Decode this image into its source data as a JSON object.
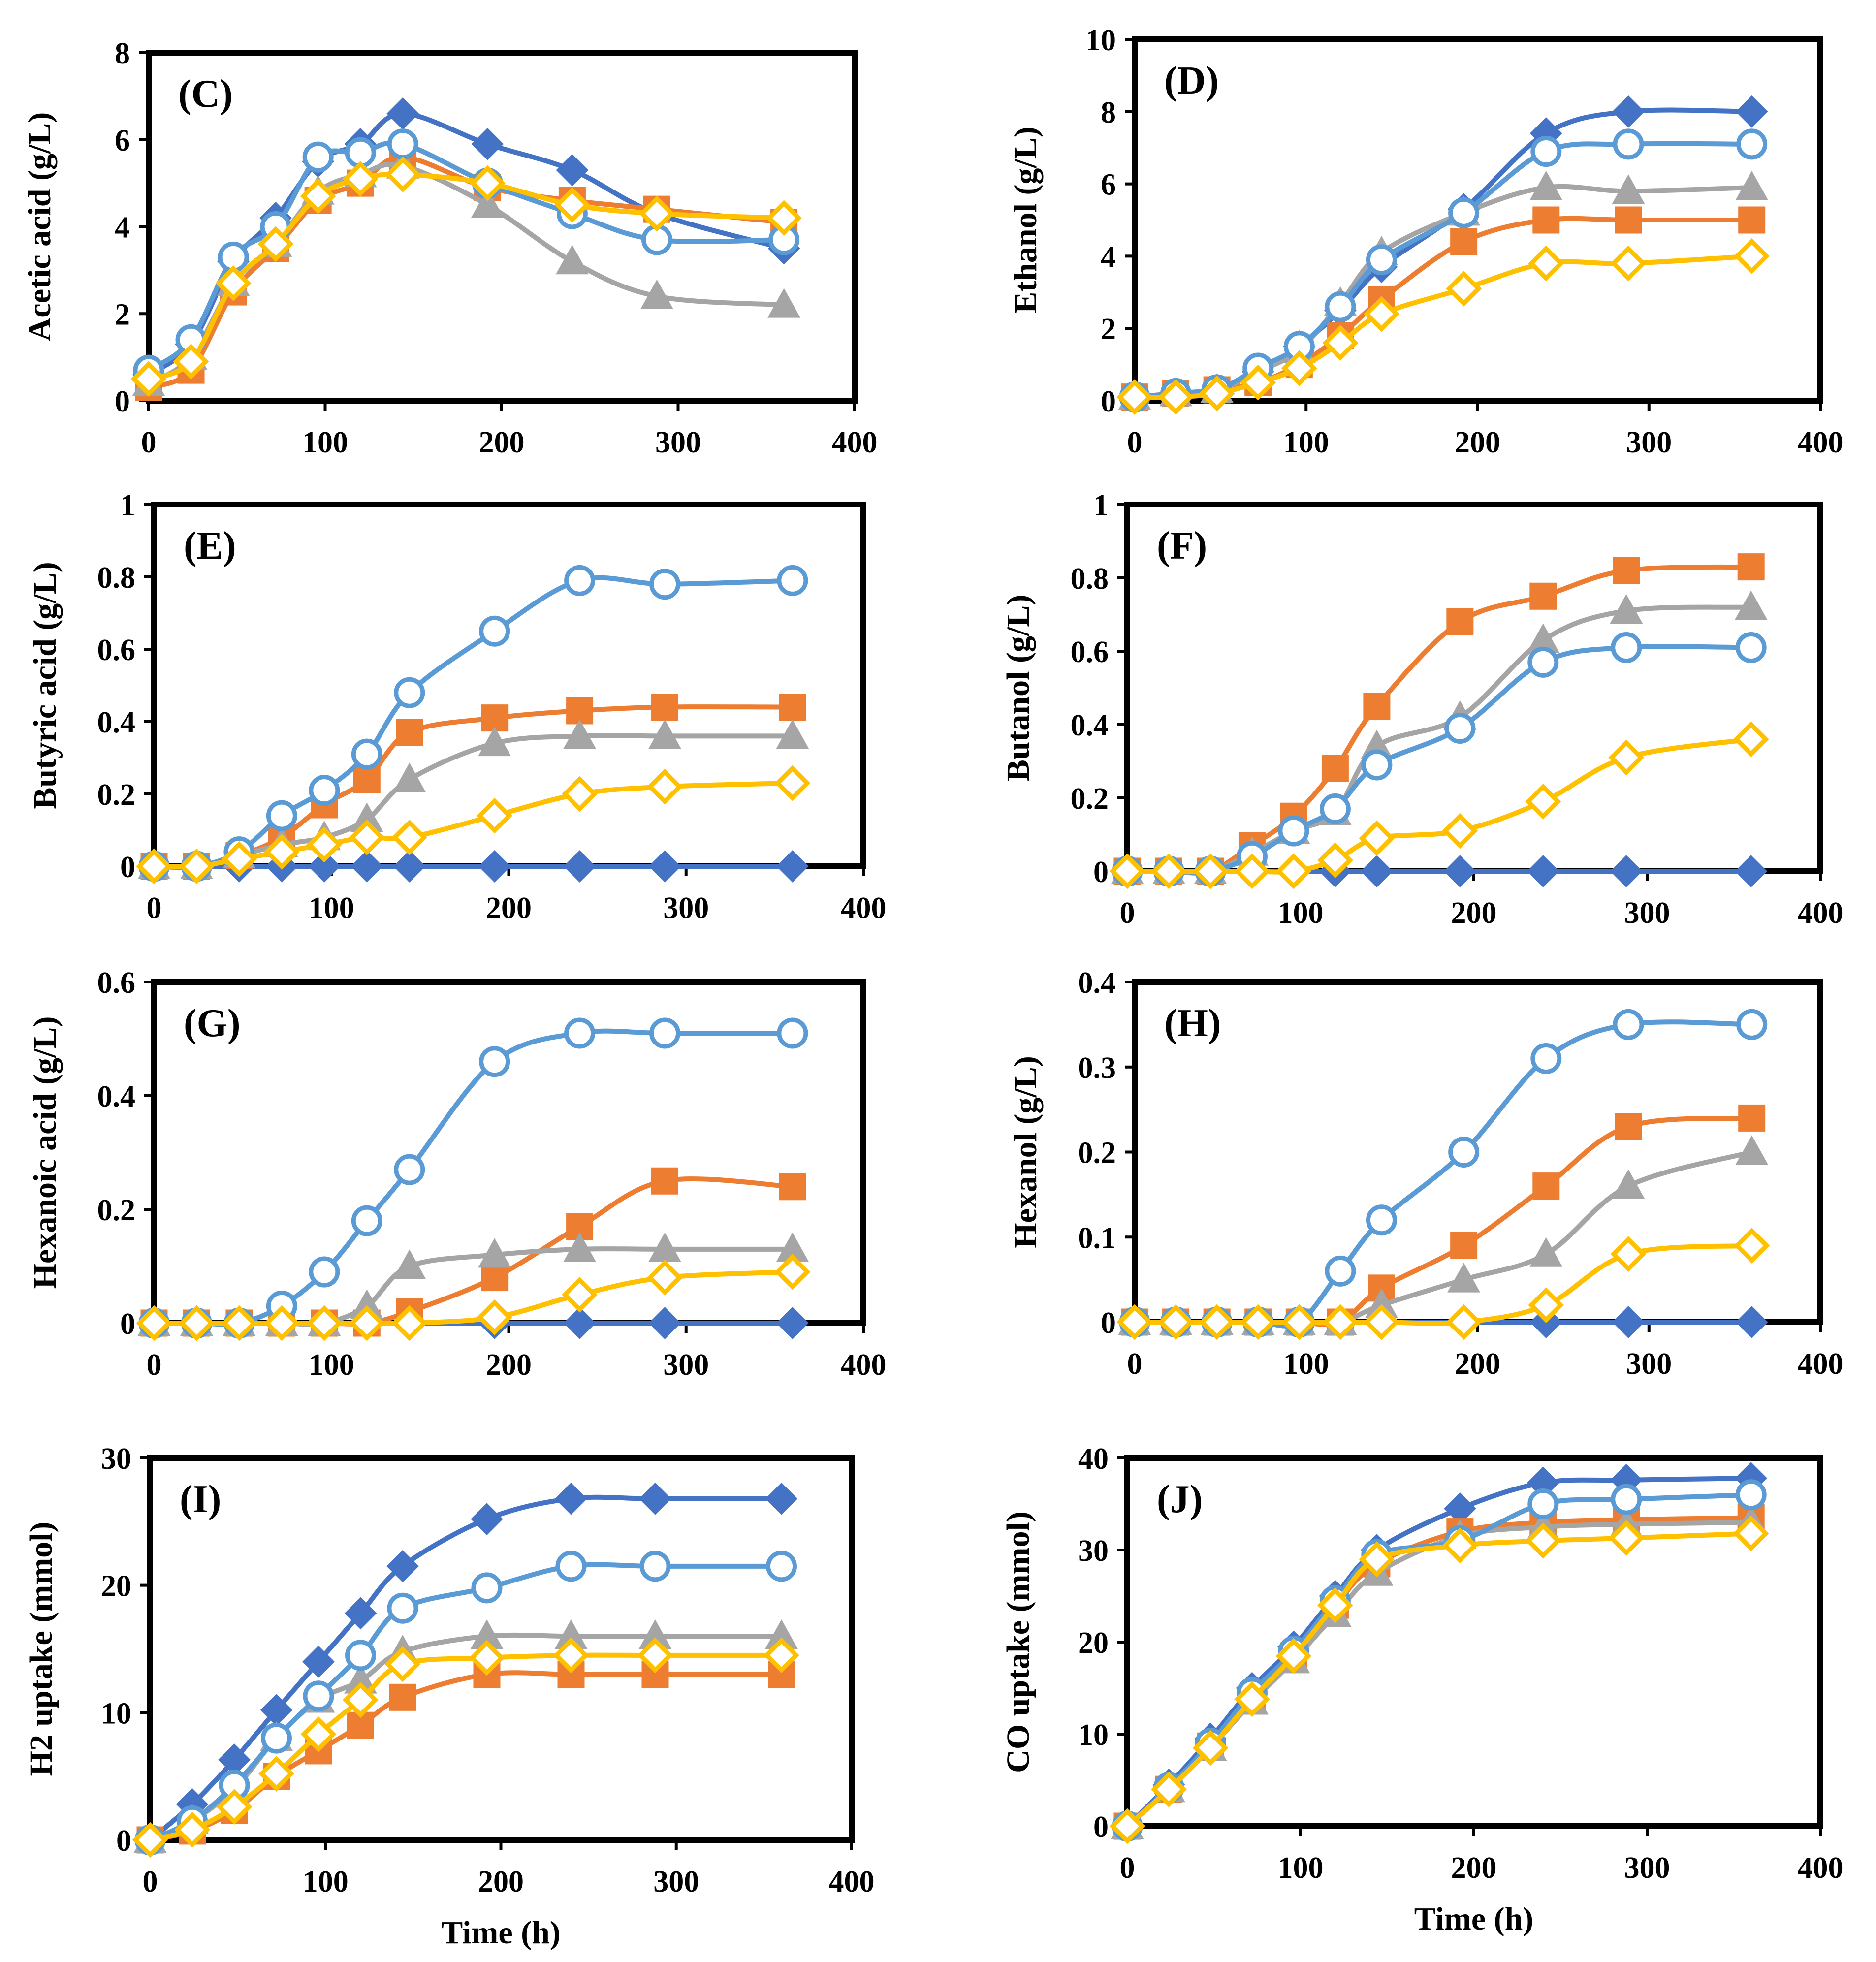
{
  "figure": {
    "x_axis_title": "Time (h)",
    "series_colors": {
      "blue_diamond": "#4472C4",
      "orange_square": "#ED7D31",
      "gray_triangle": "#A5A5A5",
      "lightblue_circle": "#5B9BD5",
      "yellow_diamond": "#FFC000"
    }
  },
  "chart_data": [
    {
      "type": "line",
      "panel": "(C)",
      "ylabel": "Acetic acid (g/L)",
      "xlabel": "",
      "xlim": [
        0,
        400
      ],
      "ylim": [
        0,
        8
      ],
      "xticks": [
        "0",
        "100",
        "200",
        "300",
        "400"
      ],
      "yticks": [
        "0",
        "2",
        "4",
        "6",
        "8"
      ],
      "x": [
        0,
        24,
        48,
        72,
        96,
        120,
        144,
        192,
        240,
        288,
        360
      ],
      "series": [
        {
          "name": "blue-diamond",
          "values": [
            0.6,
            1.3,
            3.2,
            4.2,
            5.5,
            5.9,
            6.6,
            5.9,
            5.3,
            4.3,
            3.5
          ]
        },
        {
          "name": "orange-square",
          "values": [
            0.3,
            0.7,
            2.5,
            3.5,
            4.6,
            5.0,
            5.6,
            4.9,
            4.6,
            4.4,
            4.1
          ]
        },
        {
          "name": "gray-triangle",
          "values": [
            0.4,
            1.0,
            2.7,
            3.6,
            4.8,
            5.2,
            5.4,
            4.5,
            3.2,
            2.4,
            2.2
          ]
        },
        {
          "name": "lightblue-circle",
          "values": [
            0.7,
            1.4,
            3.3,
            4.0,
            5.6,
            5.7,
            5.9,
            5.0,
            4.3,
            3.7,
            3.7
          ]
        },
        {
          "name": "yellow-diamond",
          "values": [
            0.5,
            0.9,
            2.7,
            3.6,
            4.7,
            5.1,
            5.2,
            5.0,
            4.5,
            4.3,
            4.2
          ]
        }
      ]
    },
    {
      "type": "line",
      "panel": "(D)",
      "ylabel": "Ethanol (g/L)",
      "xlabel": "",
      "xlim": [
        0,
        400
      ],
      "ylim": [
        0,
        10
      ],
      "xticks": [
        "0",
        "100",
        "200",
        "300",
        "400"
      ],
      "yticks": [
        "0",
        "2",
        "4",
        "6",
        "8",
        "10"
      ],
      "x": [
        0,
        24,
        48,
        72,
        96,
        120,
        144,
        192,
        240,
        288,
        360
      ],
      "series": [
        {
          "name": "blue-diamond",
          "values": [
            0.1,
            0.2,
            0.3,
            0.8,
            1.5,
            2.5,
            3.7,
            5.3,
            7.4,
            8.0,
            8.0
          ]
        },
        {
          "name": "orange-square",
          "values": [
            0.1,
            0.2,
            0.3,
            0.5,
            1.0,
            1.8,
            2.8,
            4.4,
            5.0,
            5.0,
            5.0
          ]
        },
        {
          "name": "gray-triangle",
          "values": [
            0.1,
            0.2,
            0.3,
            0.8,
            1.4,
            2.7,
            4.1,
            5.2,
            5.9,
            5.8,
            5.9
          ]
        },
        {
          "name": "lightblue-circle",
          "values": [
            0.1,
            0.2,
            0.3,
            0.9,
            1.5,
            2.6,
            3.9,
            5.2,
            6.9,
            7.1,
            7.1
          ]
        },
        {
          "name": "yellow-diamond",
          "values": [
            0.1,
            0.1,
            0.2,
            0.5,
            0.9,
            1.6,
            2.4,
            3.1,
            3.8,
            3.8,
            4.0
          ]
        }
      ]
    },
    {
      "type": "line",
      "panel": "(E)",
      "ylabel": "Butyric acid (g/L)",
      "xlabel": "",
      "xlim": [
        0,
        400
      ],
      "ylim": [
        0,
        1
      ],
      "xticks": [
        "0",
        "100",
        "200",
        "300",
        "400"
      ],
      "yticks": [
        "0",
        "0.2",
        "0.4",
        "0.6",
        "0.8",
        "1"
      ],
      "x": [
        0,
        24,
        48,
        72,
        96,
        120,
        144,
        192,
        240,
        288,
        360
      ],
      "series": [
        {
          "name": "blue-diamond",
          "values": [
            0,
            0,
            0,
            0,
            0,
            0,
            0,
            0,
            0,
            0,
            0
          ]
        },
        {
          "name": "orange-square",
          "values": [
            0,
            0,
            0.03,
            0.08,
            0.17,
            0.24,
            0.37,
            0.41,
            0.43,
            0.44,
            0.44
          ]
        },
        {
          "name": "gray-triangle",
          "values": [
            0,
            0,
            0.03,
            0.06,
            0.08,
            0.13,
            0.24,
            0.34,
            0.36,
            0.36,
            0.36
          ]
        },
        {
          "name": "lightblue-circle",
          "values": [
            0,
            0,
            0.04,
            0.14,
            0.21,
            0.31,
            0.48,
            0.65,
            0.79,
            0.78,
            0.79
          ]
        },
        {
          "name": "yellow-diamond",
          "values": [
            0,
            0,
            0.02,
            0.04,
            0.06,
            0.08,
            0.08,
            0.14,
            0.2,
            0.22,
            0.23
          ]
        }
      ]
    },
    {
      "type": "line",
      "panel": "(F)",
      "ylabel": "Butanol (g/L)",
      "xlabel": "",
      "xlim": [
        0,
        400
      ],
      "ylim": [
        0,
        1
      ],
      "xticks": [
        "0",
        "100",
        "200",
        "300",
        "400"
      ],
      "yticks": [
        "0",
        "0.2",
        "0.4",
        "0.6",
        "0.8",
        "1"
      ],
      "x": [
        0,
        24,
        48,
        72,
        96,
        120,
        144,
        192,
        240,
        288,
        360
      ],
      "series": [
        {
          "name": "blue-diamond",
          "values": [
            0,
            0,
            0,
            0,
            0,
            0,
            0,
            0,
            0,
            0,
            0
          ]
        },
        {
          "name": "orange-square",
          "values": [
            0,
            0,
            0,
            0.07,
            0.15,
            0.28,
            0.45,
            0.68,
            0.75,
            0.82,
            0.83
          ]
        },
        {
          "name": "gray-triangle",
          "values": [
            0,
            0,
            0,
            0.05,
            0.11,
            0.16,
            0.34,
            0.42,
            0.63,
            0.71,
            0.72
          ]
        },
        {
          "name": "lightblue-circle",
          "values": [
            0,
            0,
            0,
            0.04,
            0.11,
            0.17,
            0.29,
            0.39,
            0.57,
            0.61,
            0.61
          ]
        },
        {
          "name": "yellow-diamond",
          "values": [
            0,
            0,
            0,
            0,
            0,
            0.03,
            0.09,
            0.11,
            0.19,
            0.31,
            0.36
          ]
        }
      ]
    },
    {
      "type": "line",
      "panel": "(G)",
      "ylabel": "Hexanoic acid (g/L)",
      "xlabel": "",
      "xlim": [
        0,
        400
      ],
      "ylim": [
        0,
        0.6
      ],
      "xticks": [
        "0",
        "100",
        "200",
        "300",
        "400"
      ],
      "yticks": [
        "0",
        "0.2",
        "0.4",
        "0.6"
      ],
      "x": [
        0,
        24,
        48,
        72,
        96,
        120,
        144,
        192,
        240,
        288,
        360
      ],
      "series": [
        {
          "name": "blue-diamond",
          "values": [
            0,
            0,
            0,
            0,
            0,
            0,
            0,
            0,
            0,
            0,
            0
          ]
        },
        {
          "name": "orange-square",
          "values": [
            0,
            0,
            0,
            0,
            0,
            0,
            0.02,
            0.08,
            0.17,
            0.25,
            0.24
          ]
        },
        {
          "name": "gray-triangle",
          "values": [
            0,
            0,
            0,
            0,
            0,
            0.03,
            0.1,
            0.12,
            0.13,
            0.13,
            0.13
          ]
        },
        {
          "name": "lightblue-circle",
          "values": [
            0,
            0,
            0,
            0.03,
            0.09,
            0.18,
            0.27,
            0.46,
            0.51,
            0.51,
            0.51
          ]
        },
        {
          "name": "yellow-diamond",
          "values": [
            0,
            0,
            0,
            0,
            0,
            0,
            0,
            0.01,
            0.05,
            0.08,
            0.09
          ]
        }
      ]
    },
    {
      "type": "line",
      "panel": "(H)",
      "ylabel": "Hexanol (g/L)",
      "xlabel": "",
      "xlim": [
        0,
        400
      ],
      "ylim": [
        0,
        0.4
      ],
      "xticks": [
        "0",
        "100",
        "200",
        "300",
        "400"
      ],
      "yticks": [
        "0",
        "0.1",
        "0.2",
        "0.3",
        "0.4"
      ],
      "x": [
        0,
        24,
        48,
        72,
        96,
        120,
        144,
        192,
        240,
        288,
        360
      ],
      "series": [
        {
          "name": "blue-diamond",
          "values": [
            0,
            0,
            0,
            0,
            0,
            0,
            0,
            0,
            0,
            0,
            0
          ]
        },
        {
          "name": "orange-square",
          "values": [
            0,
            0,
            0,
            0,
            0,
            0,
            0.04,
            0.09,
            0.16,
            0.23,
            0.24
          ]
        },
        {
          "name": "gray-triangle",
          "values": [
            0,
            0,
            0,
            0,
            0,
            0,
            0.02,
            0.05,
            0.08,
            0.16,
            0.2
          ]
        },
        {
          "name": "lightblue-circle",
          "values": [
            0,
            0,
            0,
            0,
            0,
            0.06,
            0.12,
            0.2,
            0.31,
            0.35,
            0.35
          ]
        },
        {
          "name": "yellow-diamond",
          "values": [
            0,
            0,
            0,
            0,
            0,
            0,
            0,
            0,
            0.02,
            0.08,
            0.09
          ]
        }
      ]
    },
    {
      "type": "line",
      "panel": "(I)",
      "ylabel": "H2 uptake (mmol)",
      "xlabel": "Time (h)",
      "xlim": [
        0,
        400
      ],
      "ylim": [
        0,
        30
      ],
      "xticks": [
        "0",
        "100",
        "200",
        "300",
        "400"
      ],
      "yticks": [
        "0",
        "10",
        "20",
        "30"
      ],
      "x": [
        0,
        24,
        48,
        72,
        96,
        120,
        144,
        192,
        240,
        288,
        360
      ],
      "series": [
        {
          "name": "blue-diamond",
          "values": [
            0,
            2.8,
            6.3,
            10.2,
            14.0,
            17.8,
            21.5,
            25.2,
            26.8,
            26.8,
            26.8
          ]
        },
        {
          "name": "orange-square",
          "values": [
            0,
            0.7,
            2.3,
            5.0,
            7.0,
            9.0,
            11.2,
            13.0,
            13.0,
            13.0,
            13.0
          ]
        },
        {
          "name": "gray-triangle",
          "values": [
            0,
            1.5,
            4.0,
            8.0,
            11.0,
            12.5,
            14.8,
            16.0,
            16.0,
            16.0,
            16.0
          ]
        },
        {
          "name": "lightblue-circle",
          "values": [
            0,
            1.5,
            4.3,
            8.0,
            11.3,
            14.5,
            18.2,
            19.8,
            21.5,
            21.5,
            21.5
          ]
        },
        {
          "name": "yellow-diamond",
          "values": [
            0,
            0.8,
            2.6,
            5.2,
            8.3,
            11.0,
            13.8,
            14.3,
            14.5,
            14.5,
            14.5
          ]
        }
      ]
    },
    {
      "type": "line",
      "panel": "(J)",
      "ylabel": "CO uptake (mmol)",
      "xlabel": "Time (h)",
      "xlim": [
        0,
        400
      ],
      "ylim": [
        0,
        40
      ],
      "xticks": [
        "0",
        "100",
        "200",
        "300",
        "400"
      ],
      "yticks": [
        "0",
        "10",
        "20",
        "30",
        "40"
      ],
      "x": [
        0,
        24,
        48,
        72,
        96,
        120,
        144,
        192,
        240,
        288,
        360
      ],
      "series": [
        {
          "name": "blue-diamond",
          "values": [
            0,
            4.5,
            9.5,
            15.0,
            19.5,
            25.0,
            30.0,
            34.5,
            37.3,
            37.6,
            37.8
          ]
        },
        {
          "name": "orange-square",
          "values": [
            0,
            4.0,
            8.7,
            14.0,
            18.5,
            24.0,
            28.5,
            32.0,
            33.0,
            33.3,
            33.5
          ]
        },
        {
          "name": "gray-triangle",
          "values": [
            0,
            4.0,
            8.5,
            13.5,
            18.0,
            23.0,
            27.5,
            31.5,
            32.5,
            32.8,
            33.0
          ]
        },
        {
          "name": "lightblue-circle",
          "values": [
            0,
            4.2,
            9.0,
            14.5,
            19.0,
            24.5,
            29.5,
            31.0,
            35.0,
            35.5,
            36.0
          ]
        },
        {
          "name": "yellow-diamond",
          "values": [
            0,
            4.0,
            8.5,
            13.8,
            18.5,
            24.0,
            29.0,
            30.5,
            31.0,
            31.3,
            31.8
          ]
        }
      ]
    }
  ]
}
